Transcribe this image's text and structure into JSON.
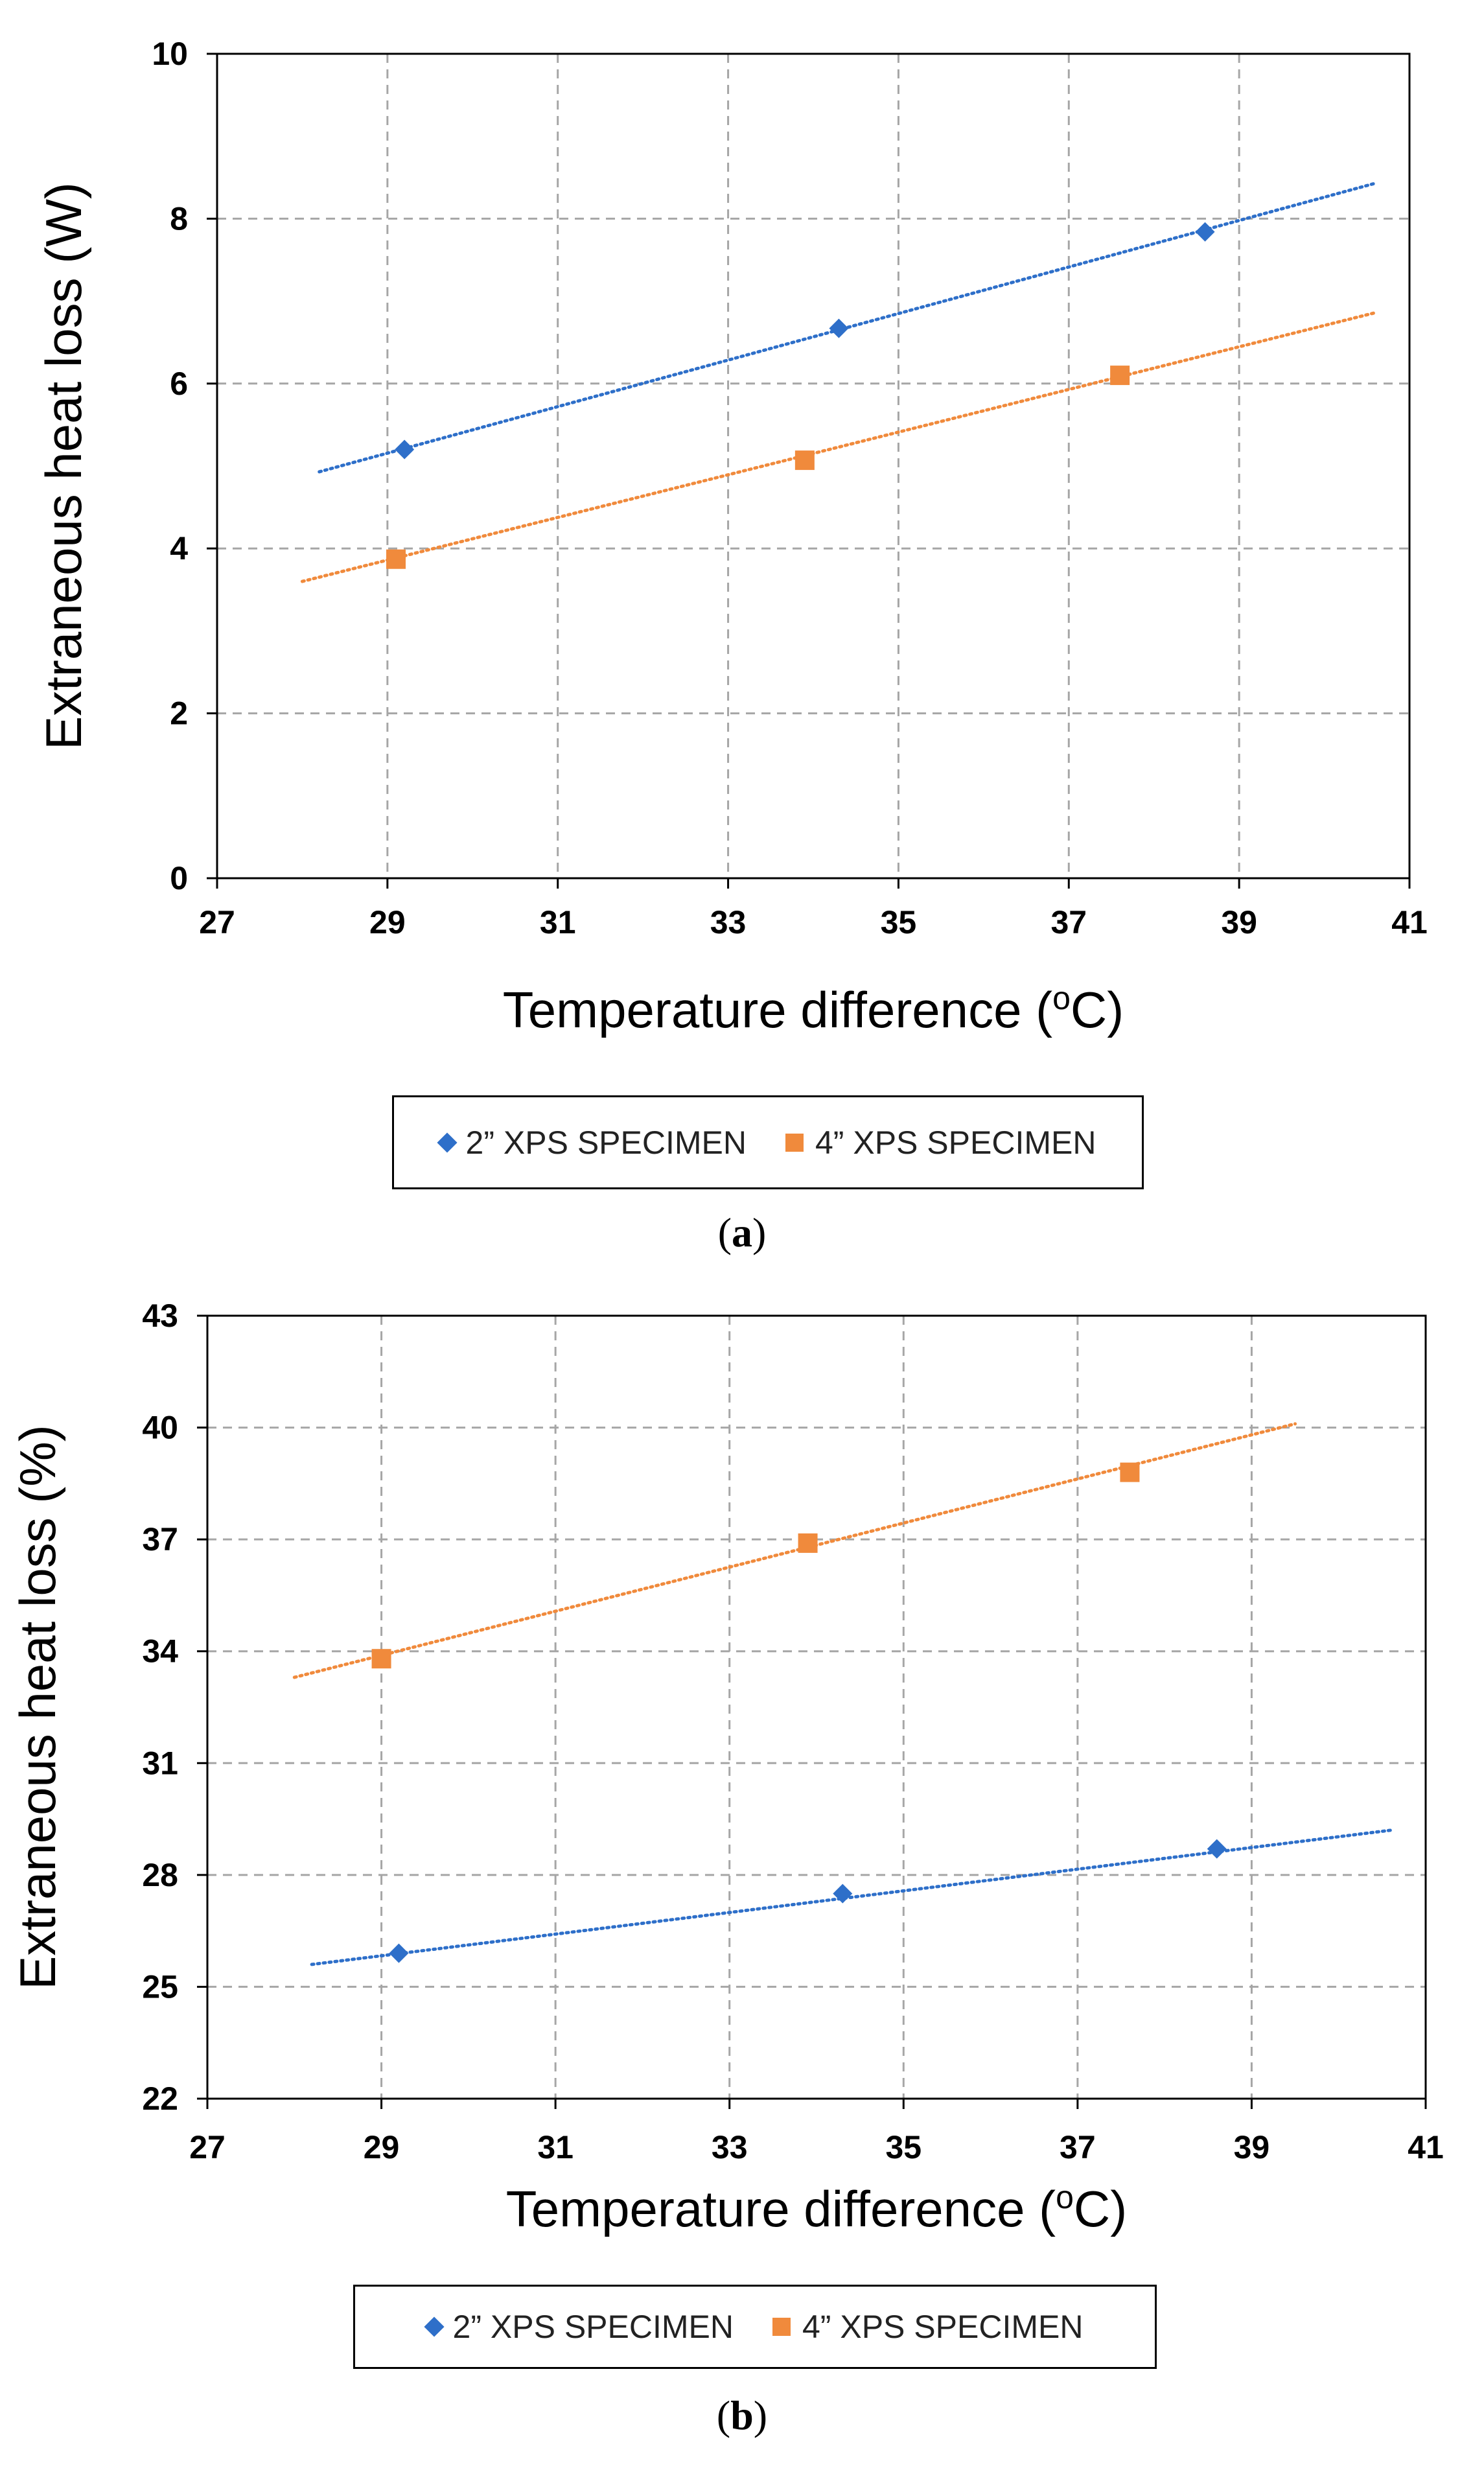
{
  "chart_data": [
    {
      "type": "scatter",
      "panel_label": "(a)",
      "panel_letter": "a",
      "xlabel": "Temperature difference (°C)",
      "xlabel_main": "Temperature difference (",
      "xlabel_sup": "o",
      "xlabel_end": "C)",
      "ylabel": "Extraneous heat loss (W)",
      "xlim": [
        27,
        41
      ],
      "ylim": [
        0,
        10
      ],
      "xticks": [
        27,
        29,
        31,
        33,
        35,
        37,
        39,
        41
      ],
      "yticks": [
        0,
        2,
        4,
        6,
        8,
        10
      ],
      "grid": true,
      "legend_position": "bottom",
      "series": [
        {
          "name": "2” XPS SPECIMEN",
          "marker": "diamond",
          "color": "#2E6FC9",
          "x": [
            29.2,
            34.3,
            38.6
          ],
          "y": [
            5.2,
            6.67,
            7.84
          ],
          "trendline": {
            "x": [
              28.2,
              40.6
            ],
            "y": [
              4.93,
              8.43
            ]
          }
        },
        {
          "name": "4” XPS SPECIMEN",
          "marker": "square",
          "color": "#F08A3C",
          "x": [
            29.1,
            33.9,
            37.6
          ],
          "y": [
            3.87,
            5.07,
            6.1
          ],
          "trendline": {
            "x": [
              28.0,
              40.6
            ],
            "y": [
              3.6,
              6.86
            ]
          }
        }
      ]
    },
    {
      "type": "scatter",
      "panel_label": "(b)",
      "panel_letter": "b",
      "xlabel": "Temperature difference (°C)",
      "xlabel_main": "Temperature difference (",
      "xlabel_sup": "o",
      "xlabel_end": "C)",
      "ylabel": "Extraneous heat loss (%)",
      "xlim": [
        27,
        41
      ],
      "ylim": [
        22,
        43
      ],
      "xticks": [
        27,
        29,
        31,
        33,
        35,
        37,
        39,
        41
      ],
      "yticks": [
        22,
        25,
        28,
        31,
        34,
        37,
        40,
        43
      ],
      "grid": true,
      "legend_position": "bottom",
      "series": [
        {
          "name": "2” XPS SPECIMEN",
          "marker": "diamond",
          "color": "#2E6FC9",
          "x": [
            29.2,
            34.3,
            38.6
          ],
          "y": [
            25.9,
            27.5,
            28.7
          ],
          "trendline": {
            "x": [
              28.2,
              40.6
            ],
            "y": [
              25.6,
              29.2
            ]
          }
        },
        {
          "name": "4” XPS SPECIMEN",
          "marker": "square",
          "color": "#F08A3C",
          "x": [
            29.0,
            33.9,
            37.6
          ],
          "y": [
            33.8,
            36.9,
            38.8
          ],
          "trendline": {
            "x": [
              28.0,
              39.5
            ],
            "y": [
              33.3,
              40.1
            ]
          }
        }
      ]
    }
  ]
}
